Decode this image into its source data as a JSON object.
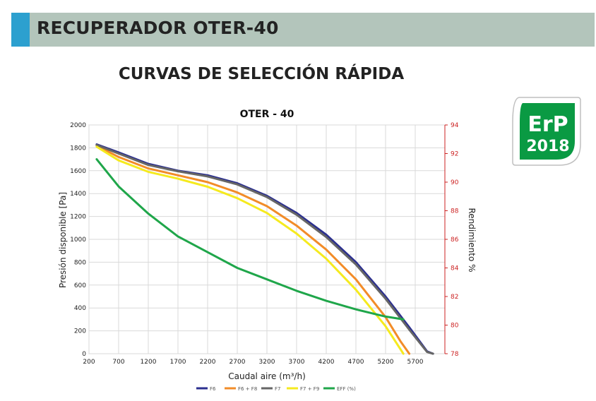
{
  "header": {
    "title": "RECUPERADOR OTER-40"
  },
  "subtitle": "CURVAS DE SELECCIÓN RÁPIDA",
  "badge": {
    "line1": "ErP",
    "line2": "2018",
    "color": "#0a9a43"
  },
  "chart_data": {
    "type": "line",
    "title": "OTER - 40",
    "xlabel": "Caudal aire (m³/h)",
    "ylabel": "Presión disponible [Pa]",
    "y2label": "Rendimiento %",
    "xlim": [
      200,
      6200
    ],
    "ylim": [
      0,
      2000
    ],
    "y2lim": [
      78,
      94
    ],
    "xticks": [
      200,
      700,
      1200,
      1700,
      2200,
      2700,
      3200,
      3700,
      4200,
      4700,
      5200,
      5700
    ],
    "yticks": [
      0,
      200,
      400,
      600,
      800,
      1000,
      1200,
      1400,
      1600,
      1800,
      2000
    ],
    "y2ticks": [
      78,
      80,
      82,
      84,
      86,
      88,
      90,
      92,
      94
    ],
    "grid": true,
    "legend_position": "bottom",
    "series": [
      {
        "name": "F6",
        "color": "#2b2f8f",
        "axis": "left",
        "x": [
          330,
          700,
          1200,
          1700,
          2200,
          2700,
          3200,
          3700,
          4200,
          4700,
          5200,
          5600,
          5900,
          6000
        ],
        "y": [
          1830,
          1760,
          1660,
          1600,
          1560,
          1490,
          1380,
          1230,
          1040,
          800,
          500,
          230,
          20,
          0
        ]
      },
      {
        "name": "F6 + F8",
        "color": "#f28c28",
        "axis": "left",
        "x": [
          330,
          700,
          1200,
          1700,
          2200,
          2700,
          3200,
          3700,
          4200,
          4700,
          5200,
          5450,
          5600
        ],
        "y": [
          1820,
          1720,
          1620,
          1560,
          1500,
          1410,
          1290,
          1120,
          910,
          650,
          320,
          110,
          0
        ]
      },
      {
        "name": "F7",
        "color": "#666666",
        "axis": "left",
        "x": [
          330,
          700,
          1200,
          1700,
          2200,
          2700,
          3200,
          3700,
          4200,
          4700,
          5200,
          5600,
          5900,
          6000
        ],
        "y": [
          1825,
          1750,
          1650,
          1595,
          1550,
          1480,
          1370,
          1215,
          1020,
          780,
          480,
          210,
          15,
          0
        ]
      },
      {
        "name": "F7 + F9",
        "color": "#f5ea1e",
        "axis": "left",
        "x": [
          330,
          700,
          1200,
          1700,
          2200,
          2700,
          3200,
          3700,
          4200,
          4700,
          5200,
          5400,
          5500
        ],
        "y": [
          1810,
          1690,
          1590,
          1530,
          1460,
          1360,
          1230,
          1050,
          830,
          560,
          240,
          80,
          0
        ]
      },
      {
        "name": "EFF (%)",
        "color": "#1fa64a",
        "axis": "right",
        "x": [
          330,
          700,
          1200,
          1700,
          2200,
          2700,
          3200,
          3700,
          4200,
          4700,
          5200,
          5500
        ],
        "y": [
          91.6,
          89.7,
          87.8,
          86.2,
          85.1,
          84.0,
          83.2,
          82.4,
          81.7,
          81.1,
          80.6,
          80.4
        ]
      }
    ]
  }
}
